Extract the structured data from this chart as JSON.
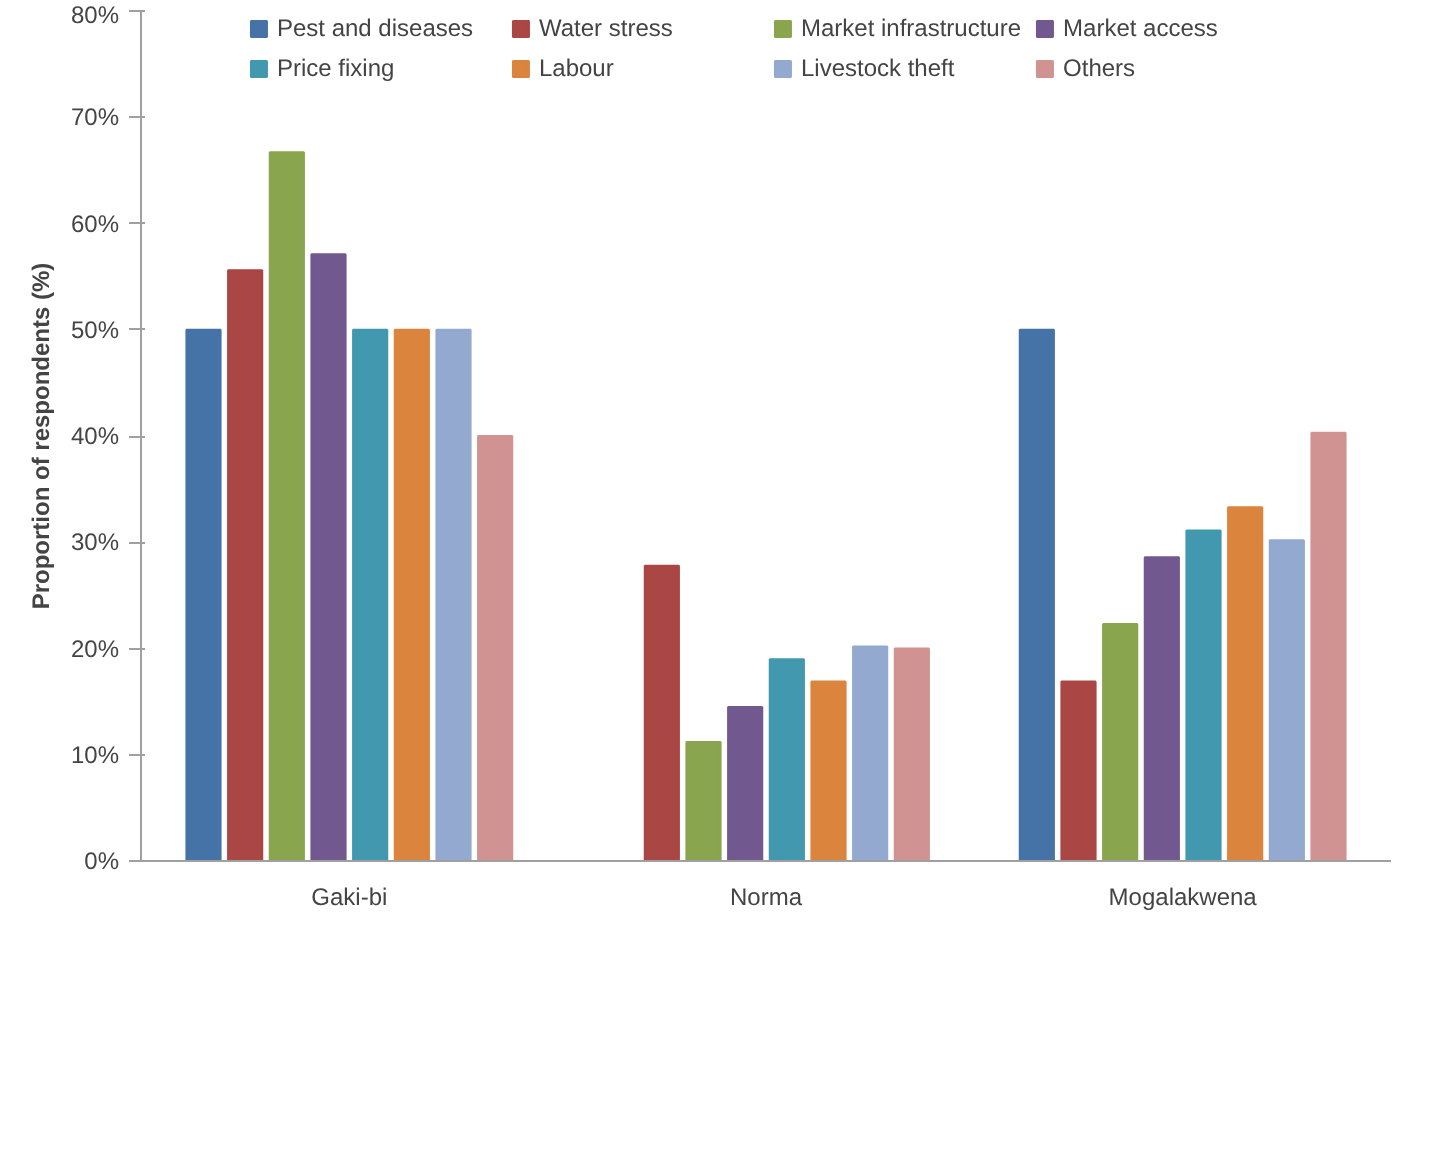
{
  "chart_data": {
    "type": "bar",
    "ylabel": "Proportion of respondents (%)",
    "categories": [
      "Gaki-bi",
      "Norma",
      "Mogalakwena"
    ],
    "series": [
      {
        "name": "Pest and diseases",
        "color": "#4572a7",
        "values": [
          50,
          0,
          50
        ]
      },
      {
        "name": "Water stress",
        "color": "#aa4643",
        "values": [
          55.6,
          27.8,
          16.9
        ]
      },
      {
        "name": "Market infrastructure",
        "color": "#89a54e",
        "values": [
          66.7,
          11.2,
          22.3
        ]
      },
      {
        "name": "Market access",
        "color": "#71588f",
        "values": [
          57.1,
          14.5,
          28.6
        ]
      },
      {
        "name": "Price fixing",
        "color": "#4198af",
        "values": [
          50,
          19,
          31.1
        ]
      },
      {
        "name": "Labour",
        "color": "#db843d",
        "values": [
          50,
          16.9,
          33.3
        ]
      },
      {
        "name": "Livestock theft",
        "color": "#93a9cf",
        "values": [
          50,
          20.2,
          30.2
        ]
      },
      {
        "name": "Others",
        "color": "#d19392",
        "values": [
          40,
          20,
          40.3
        ]
      }
    ],
    "ylim": [
      0,
      80
    ],
    "yticks": [
      {
        "value": 0,
        "label": "0%"
      },
      {
        "value": 10,
        "label": "10%"
      },
      {
        "value": 20,
        "label": "20%"
      },
      {
        "value": 30,
        "label": "30%"
      },
      {
        "value": 40,
        "label": "40%"
      },
      {
        "value": 50,
        "label": "50%"
      },
      {
        "value": 60,
        "label": "60%"
      },
      {
        "value": 70,
        "label": "70%"
      },
      {
        "value": 80,
        "label": "80%"
      }
    ],
    "grid": false,
    "legend": "top"
  }
}
